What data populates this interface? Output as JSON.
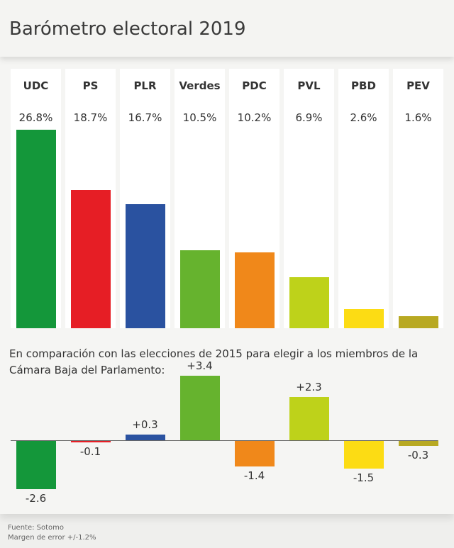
{
  "title": "Barómetro electoral 2019",
  "chart_data": [
    {
      "type": "bar",
      "categories": [
        "UDC",
        "PS",
        "PLR",
        "Verdes",
        "PDC",
        "PVL",
        "PBD",
        "PEV"
      ],
      "values": [
        26.8,
        18.7,
        16.7,
        10.5,
        10.2,
        6.9,
        2.6,
        1.6
      ],
      "labels": [
        "26.8%",
        "18.7%",
        "16.7%",
        "10.5%",
        "10.2%",
        "6.9%",
        "2.6%",
        "1.6%"
      ],
      "colors": [
        "#14973a",
        "#e61e25",
        "#2a52a0",
        "#66b32e",
        "#f0881a",
        "#bed21a",
        "#fcdc14",
        "#b8a922"
      ]
    },
    {
      "type": "bar",
      "subtitle": "En comparación con las elecciones de 2015 para elegir a los miembros de la Cámara Baja del Parlamento:",
      "categories": [
        "UDC",
        "PS",
        "PLR",
        "Verdes",
        "PDC",
        "PVL",
        "PBD",
        "PEV"
      ],
      "values": [
        -2.6,
        -0.1,
        0.3,
        3.4,
        -1.4,
        2.3,
        -1.5,
        -0.3
      ],
      "labels": [
        "-2.6",
        "-0.1",
        "+0.3",
        "+3.4",
        "-1.4",
        "+2.3",
        "-1.5",
        "-0.3"
      ]
    }
  ],
  "footer": {
    "source": "Fuente: Sotomo",
    "margin": "Margen de error +/-1.2%"
  }
}
